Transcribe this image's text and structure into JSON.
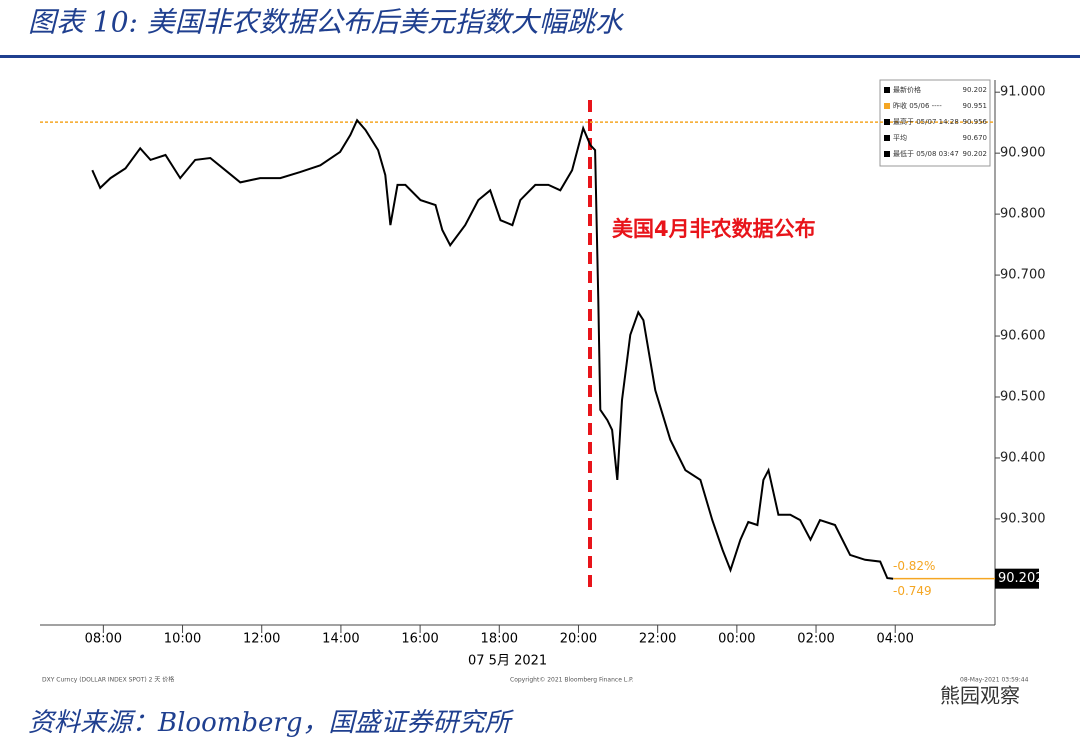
{
  "header": {
    "title": "图表 10:  美国非农数据公布后美元指数大幅跳水"
  },
  "chart_data": {
    "type": "line",
    "color": "#000000",
    "x": [
      7.72,
      7.92,
      8.18,
      8.56,
      8.93,
      9.19,
      9.57,
      9.94,
      10.32,
      10.7,
      11.08,
      11.46,
      11.96,
      12.47,
      12.97,
      13.48,
      13.98,
      14.24,
      14.41,
      14.62,
      14.94,
      15.12,
      15.25,
      15.43,
      15.63,
      16.01,
      16.39,
      16.56,
      16.76,
      17.14,
      17.47,
      17.77,
      18.03,
      18.33,
      18.53,
      18.91,
      19.24,
      19.54,
      19.84,
      20.12,
      20.3,
      20.42,
      20.5,
      20.55,
      20.73,
      20.85,
      20.98,
      21.1,
      21.31,
      21.51,
      21.64,
      21.94,
      22.32,
      22.7,
      23.08,
      23.38,
      23.64,
      23.84,
      24.09,
      24.29,
      24.52,
      24.67,
      24.8,
      25.05,
      25.35,
      25.6,
      25.86,
      26.1,
      26.48,
      26.86,
      27.24,
      27.62,
      27.8,
      27.95
    ],
    "values": [
      90.872,
      90.843,
      90.859,
      90.875,
      90.908,
      90.889,
      90.897,
      90.859,
      90.889,
      90.892,
      90.872,
      90.852,
      90.859,
      90.859,
      90.869,
      90.88,
      90.902,
      90.93,
      90.954,
      90.938,
      90.905,
      90.864,
      90.782,
      90.848,
      90.848,
      90.823,
      90.815,
      90.774,
      90.749,
      90.782,
      90.823,
      90.839,
      90.79,
      90.782,
      90.823,
      90.848,
      90.848,
      90.839,
      90.872,
      90.941,
      90.913,
      90.905,
      90.659,
      90.479,
      90.462,
      90.446,
      90.364,
      90.495,
      90.602,
      90.639,
      90.626,
      90.511,
      90.43,
      90.38,
      90.364,
      90.298,
      90.249,
      90.216,
      90.266,
      90.295,
      90.29,
      90.364,
      90.38,
      90.307,
      90.307,
      90.298,
      90.266,
      90.298,
      90.29,
      90.241,
      90.233,
      90.23,
      90.203,
      90.202
    ],
    "xlim": [
      6.4,
      30.52
    ],
    "xticks": [
      {
        "value": 8,
        "label": "08:00"
      },
      {
        "value": 10,
        "label": "10:00"
      },
      {
        "value": 12,
        "label": "12:00"
      },
      {
        "value": 14,
        "label": "14:00"
      },
      {
        "value": 16,
        "label": "16:00"
      },
      {
        "value": 18,
        "label": "18:00"
      },
      {
        "value": 20,
        "label": "20:00"
      },
      {
        "value": 22,
        "label": "22:00"
      },
      {
        "value": 24,
        "label": "00:00"
      },
      {
        "value": 26,
        "label": "02:00"
      },
      {
        "value": 28,
        "label": "04:00"
      }
    ],
    "x_label": "07 5月 2021",
    "ylim": [
      90.126,
      91.02
    ],
    "yticks": [
      {
        "value": 90.3,
        "label": "90.300"
      },
      {
        "value": 90.4,
        "label": "90.400"
      },
      {
        "value": 90.5,
        "label": "90.500"
      },
      {
        "value": 90.6,
        "label": "90.600"
      },
      {
        "value": 90.7,
        "label": "90.700"
      },
      {
        "value": 90.8,
        "label": "90.800"
      },
      {
        "value": 90.9,
        "label": "90.900"
      },
      {
        "value": 91,
        "label": "91.000"
      }
    ],
    "annotation": "美国4月非农数据公布",
    "legend_box": {
      "labels": [
        "最新价格",
        "昨收 05/06 ----",
        "最高于 05/07 14:28",
        "平均",
        "最低于 05/08 03:47"
      ],
      "values": [
        90.202,
        90.951,
        90.956,
        90.67,
        90.202
      ],
      "value_labels": [
        "90.202",
        "90.951",
        "90.956",
        "90.670",
        "90.202"
      ]
    },
    "last_value": 90.202,
    "changes": [
      {
        "value": -0.82,
        "label": "-0.82%"
      },
      -0.749
    ],
    "footnotes": [
      "DXY Curncy (DOLLAR INDEX SPOT) 2 天 价格",
      "Copyright© 2021 Bloomberg Finance L.P.",
      "08-May-2021 03:59:44"
    ]
  },
  "footer": {
    "source": "资料来源：Bloomberg，国盛证券研究所",
    "watermark": "熊园观察"
  }
}
